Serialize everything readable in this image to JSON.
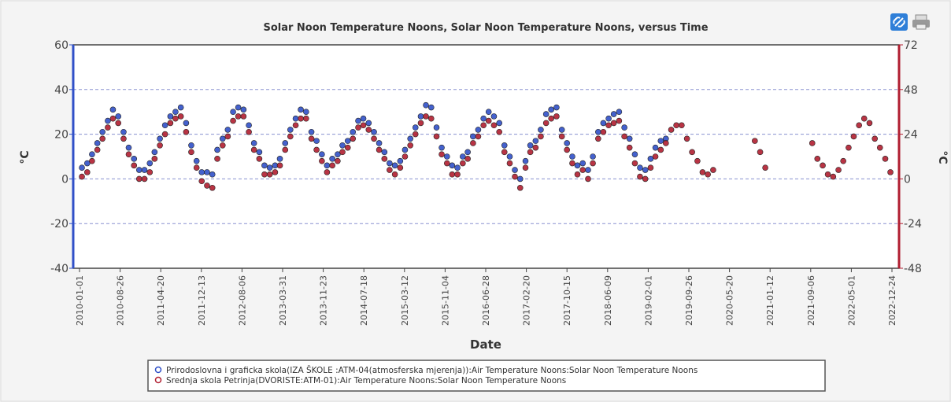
{
  "chart_data": {
    "type": "scatter",
    "title": "Solar Noon Temperature Noons, Solar Noon Temperature Noons, versus Time",
    "xlabel": "Date",
    "ylabel": "°C",
    "y2label": "°C",
    "xlim": [
      "2010-01-01",
      "2022-12-24"
    ],
    "xticks": [
      "2010-01-01",
      "2010-08-26",
      "2011-04-20",
      "2011-12-13",
      "2012-08-06",
      "2013-03-31",
      "2013-11-23",
      "2014-07-18",
      "2015-03-12",
      "2015-11-04",
      "2016-06-28",
      "2017-02-20",
      "2017-10-15",
      "2018-06-09",
      "2019-02-01",
      "2019-09-26",
      "2020-05-20",
      "2021-01-12",
      "2021-09-06",
      "2022-05-01",
      "2022-12-24"
    ],
    "ylim": [
      -40,
      60
    ],
    "yticks": [
      -40,
      -20,
      0,
      20,
      40,
      60
    ],
    "y2lim": [
      -48,
      72
    ],
    "y2ticks": [
      -48,
      -24,
      0,
      24,
      48,
      72
    ],
    "grid": true,
    "x": [
      "2010-01-15",
      "2010-02-15",
      "2010-03-15",
      "2010-04-15",
      "2010-05-15",
      "2010-06-15",
      "2010-07-15",
      "2010-08-15",
      "2010-09-15",
      "2010-10-15",
      "2010-11-15",
      "2010-12-15",
      "2011-01-15",
      "2011-02-15",
      "2011-03-15",
      "2011-04-15",
      "2011-05-15",
      "2011-06-15",
      "2011-07-15",
      "2011-08-15",
      "2011-09-15",
      "2011-10-15",
      "2011-11-15",
      "2011-12-15",
      "2012-01-15",
      "2012-02-15",
      "2012-03-15",
      "2012-04-15",
      "2012-05-15",
      "2012-06-15",
      "2012-07-15",
      "2012-08-15",
      "2012-09-15",
      "2012-10-15",
      "2012-11-15",
      "2012-12-15",
      "2013-01-15",
      "2013-02-15",
      "2013-03-15",
      "2013-04-15",
      "2013-05-15",
      "2013-06-15",
      "2013-07-15",
      "2013-08-15",
      "2013-09-15",
      "2013-10-15",
      "2013-11-15",
      "2013-12-15",
      "2014-01-15",
      "2014-02-15",
      "2014-03-15",
      "2014-04-15",
      "2014-05-15",
      "2014-06-15",
      "2014-07-15",
      "2014-08-15",
      "2014-09-15",
      "2014-10-15",
      "2014-11-15",
      "2014-12-15",
      "2015-01-15",
      "2015-02-15",
      "2015-03-15",
      "2015-04-15",
      "2015-05-15",
      "2015-06-15",
      "2015-07-15",
      "2015-08-15",
      "2015-09-15",
      "2015-10-15",
      "2015-11-15",
      "2015-12-15",
      "2016-01-15",
      "2016-02-15",
      "2016-03-15",
      "2016-04-15",
      "2016-05-15",
      "2016-06-15",
      "2016-07-15",
      "2016-08-15",
      "2016-09-15",
      "2016-10-15",
      "2016-11-15",
      "2016-12-15",
      "2017-01-15",
      "2017-02-15",
      "2017-03-15",
      "2017-04-15",
      "2017-05-15",
      "2017-06-15",
      "2017-07-15",
      "2017-08-15",
      "2017-09-15",
      "2017-10-15",
      "2017-11-15",
      "2017-12-15",
      "2018-01-15",
      "2018-02-15",
      "2018-03-15",
      "2018-04-15",
      "2018-05-15",
      "2018-06-15",
      "2018-07-15",
      "2018-08-15",
      "2018-09-15",
      "2018-10-15",
      "2018-11-15",
      "2018-12-15",
      "2019-01-15",
      "2019-02-15",
      "2019-03-15",
      "2019-04-15",
      "2019-05-15",
      "2019-06-15",
      "2019-07-15",
      "2019-08-15",
      "2019-09-15",
      "2019-10-15",
      "2019-11-15",
      "2019-12-15",
      "2020-01-15",
      "2020-02-15",
      "2020-03-15",
      "2020-04-15",
      "2020-05-15",
      "2020-06-15",
      "2020-07-15",
      "2020-08-15",
      "2020-09-15",
      "2020-10-15",
      "2020-11-15",
      "2020-12-15",
      "2021-01-15",
      "2021-02-15",
      "2021-03-15",
      "2021-04-15",
      "2021-05-15",
      "2021-06-15",
      "2021-07-15",
      "2021-08-15",
      "2021-09-15",
      "2021-10-15",
      "2021-11-15",
      "2021-12-15",
      "2022-01-15",
      "2022-02-15",
      "2022-03-15",
      "2022-04-15",
      "2022-05-15",
      "2022-06-15",
      "2022-07-15",
      "2022-08-15",
      "2022-09-15",
      "2022-10-15",
      "2022-11-15",
      "2022-12-15"
    ],
    "series": [
      {
        "name": "Prirodoslovna i graficka skola(IZA ŠKOLE :ATM-04(atmosferska mjerenja)):Air Temperature Noons:Solar Noon Temperature Noons",
        "color": "#3050c8",
        "values": [
          5,
          7,
          11,
          16,
          21,
          26,
          31,
          28,
          21,
          14,
          9,
          4,
          4,
          7,
          12,
          18,
          24,
          28,
          30,
          32,
          25,
          15,
          8,
          3,
          3,
          2,
          13,
          18,
          22,
          30,
          32,
          31,
          24,
          16,
          12,
          6,
          5,
          6,
          9,
          16,
          22,
          27,
          31,
          30,
          21,
          17,
          11,
          6,
          9,
          11,
          15,
          17,
          21,
          26,
          27,
          25,
          21,
          16,
          12,
          7,
          6,
          8,
          13,
          18,
          23,
          28,
          33,
          32,
          23,
          14,
          10,
          6,
          5,
          10,
          12,
          19,
          22,
          27,
          30,
          28,
          25,
          15,
          10,
          4,
          0,
          8,
          15,
          17,
          22,
          29,
          31,
          32,
          22,
          16,
          10,
          6,
          7,
          4,
          10,
          21,
          25,
          27,
          29,
          30,
          23,
          18,
          11,
          5,
          4,
          9,
          14,
          17,
          18,
          null,
          null,
          null,
          null,
          null,
          null,
          null,
          null,
          null,
          null,
          null,
          null,
          null,
          null,
          null,
          null,
          null,
          null,
          null,
          null,
          null,
          null,
          null,
          null,
          null,
          null,
          null,
          null,
          null,
          null,
          null,
          null,
          null,
          null,
          null,
          null,
          null,
          null,
          null,
          null,
          null,
          null,
          null
        ]
      },
      {
        "name": "Srednja skola Petrinja(DVORISTE:ATM-01):Air Temperature Noons:Solar Noon Temperature Noons",
        "color": "#b01e30",
        "values": [
          1,
          3,
          8,
          13,
          18,
          23,
          27,
          25,
          18,
          11,
          6,
          0,
          0,
          3,
          9,
          15,
          20,
          25,
          27,
          28,
          21,
          12,
          5,
          -1,
          -3,
          -4,
          9,
          15,
          19,
          26,
          28,
          28,
          21,
          13,
          9,
          2,
          2,
          3,
          6,
          13,
          19,
          24,
          27,
          27,
          18,
          13,
          8,
          3,
          6,
          8,
          12,
          14,
          18,
          23,
          24,
          22,
          18,
          13,
          9,
          4,
          2,
          5,
          10,
          15,
          20,
          25,
          28,
          27,
          19,
          11,
          7,
          2,
          2,
          7,
          9,
          16,
          19,
          24,
          26,
          24,
          21,
          12,
          7,
          1,
          -4,
          5,
          12,
          14,
          19,
          25,
          27,
          28,
          19,
          13,
          7,
          2,
          4,
          0,
          7,
          18,
          21,
          24,
          25,
          26,
          19,
          14,
          7,
          1,
          0,
          5,
          10,
          13,
          16,
          22,
          24,
          24,
          18,
          12,
          8,
          3,
          2,
          4,
          null,
          null,
          null,
          null,
          null,
          null,
          null,
          17,
          12,
          5,
          null,
          null,
          null,
          null,
          null,
          null,
          null,
          null,
          16,
          9,
          6,
          2,
          1,
          4,
          8,
          14,
          19,
          24,
          27,
          25,
          18,
          14,
          9,
          3
        ]
      }
    ]
  }
}
